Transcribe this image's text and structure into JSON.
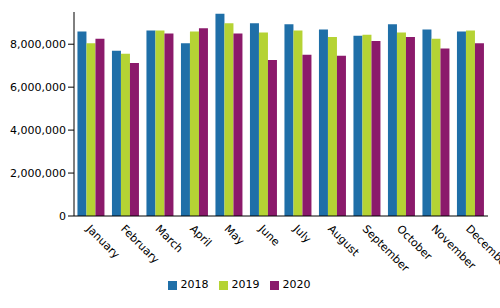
{
  "chart_data": {
    "type": "bar",
    "categories": [
      "January",
      "February",
      "March",
      "April",
      "May",
      "June",
      "July",
      "August",
      "September",
      "October",
      "November",
      "December"
    ],
    "series": [
      {
        "name": "2018",
        "color": "#1f6fa8",
        "values": [
          8590000,
          7700000,
          8640000,
          8050000,
          9420000,
          8980000,
          8930000,
          8690000,
          8390000,
          8930000,
          8690000,
          8590000
        ]
      },
      {
        "name": "2019",
        "color": "#b5d334",
        "values": [
          8050000,
          7560000,
          8640000,
          8590000,
          8980000,
          8540000,
          8640000,
          8340000,
          8440000,
          8540000,
          8250000,
          8640000
        ]
      },
      {
        "name": "2020",
        "color": "#8b1a6b",
        "values": [
          8250000,
          7120000,
          8500000,
          8740000,
          8500000,
          7260000,
          7510000,
          7460000,
          8150000,
          8340000,
          7800000,
          8050000
        ]
      }
    ],
    "ylim": [
      0,
      9500000
    ],
    "yticks": [
      0,
      {
        "value": 2000000,
        "label": "2,000,000"
      },
      {
        "value": 4000000,
        "label": "4,000,000"
      },
      {
        "value": 6000000,
        "label": "6,000,000"
      },
      {
        "value": 8000000,
        "label": "8,000,000"
      }
    ],
    "grid": false,
    "legend": "bottom"
  }
}
